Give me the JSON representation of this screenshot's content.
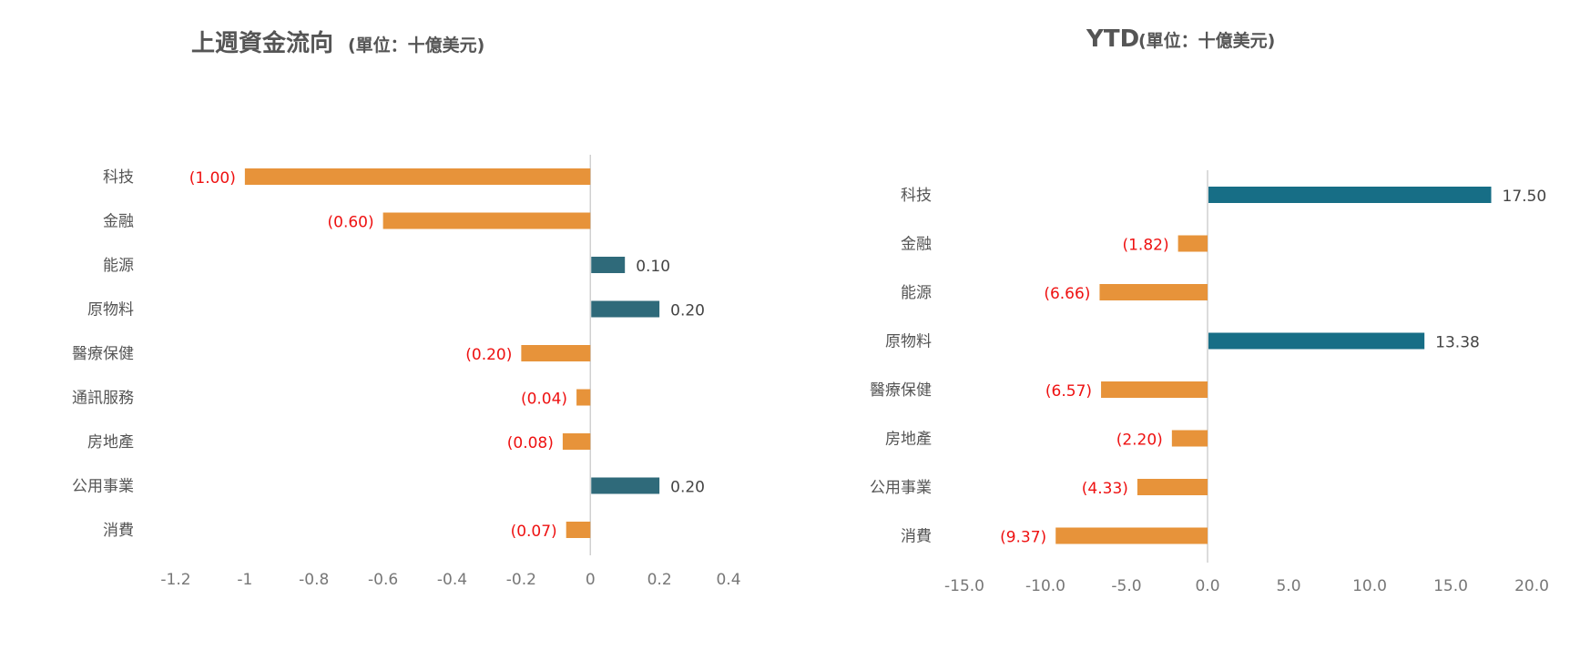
{
  "colors": {
    "positive": "#2f6a7a",
    "positive_alt": "#176e86",
    "negative": "#e7933a",
    "neg_label": "#ee1111",
    "pos_label": "#444444"
  },
  "chart_data": [
    {
      "type": "bar",
      "orientation": "horizontal",
      "title": "上週資金流向",
      "subtitle": "(單位：十億美元)",
      "categories": [
        "科技",
        "金融",
        "能源",
        "原物料",
        "醫療保健",
        "通訊服務",
        "房地產",
        "公用事業",
        "消費"
      ],
      "values": [
        -1.0,
        -0.6,
        0.1,
        0.2,
        -0.2,
        -0.04,
        -0.08,
        0.2,
        -0.07
      ],
      "labels": [
        "(1.00)",
        "(0.60)",
        "0.10",
        "0.20",
        "(0.20)",
        "(0.04)",
        "(0.08)",
        "0.20",
        "(0.07)"
      ],
      "xlim": [
        -1.2,
        0.4
      ],
      "ticks": [
        "-1.2",
        "-1",
        "-0.8",
        "-0.6",
        "-0.4",
        "-0.2",
        "0",
        "0.2",
        "0.4"
      ],
      "grid": false
    },
    {
      "type": "bar",
      "orientation": "horizontal",
      "title": "YTD",
      "subtitle": "(單位：十億美元)",
      "categories": [
        "科技",
        "金融",
        "能源",
        "原物料",
        "醫療保健",
        "房地產",
        "公用事業",
        "消費"
      ],
      "values": [
        17.5,
        -1.82,
        -6.66,
        13.38,
        -6.57,
        -2.2,
        -4.33,
        -9.37
      ],
      "labels": [
        "17.50",
        "(1.82)",
        "(6.66)",
        "13.38",
        "(6.57)",
        "(2.20)",
        "(4.33)",
        "(9.37)"
      ],
      "xlim": [
        -15.0,
        20.0
      ],
      "ticks": [
        "-15.0",
        "-10.0",
        "-5.0",
        "0.0",
        "5.0",
        "10.0",
        "15.0",
        "20.0"
      ],
      "grid": false
    }
  ]
}
